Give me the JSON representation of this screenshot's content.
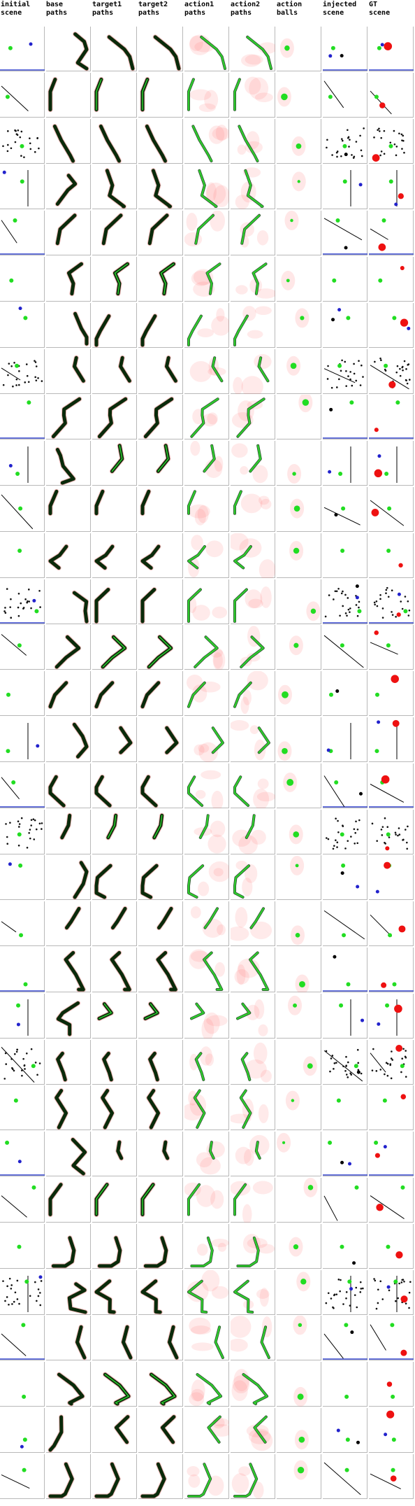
{
  "columns": [
    {
      "id": "initial_scene",
      "label": "initial\nscene"
    },
    {
      "id": "base_paths",
      "label": "base\npaths"
    },
    {
      "id": "target1_paths",
      "label": "target1\npaths"
    },
    {
      "id": "target2_paths",
      "label": "target2\npaths"
    },
    {
      "id": "action1_paths",
      "label": "action1\npaths"
    },
    {
      "id": "action2_paths",
      "label": "action2\npaths"
    },
    {
      "id": "action_balls",
      "label": "action\nballs"
    },
    {
      "id": "injected_scene",
      "label": "injected\nscene"
    },
    {
      "id": "gt_scene",
      "label": "GT\nscene"
    }
  ],
  "row_count": 32,
  "colors": {
    "background": "#ffffff",
    "grid_line": "#b8b8b8",
    "path_dark": "#0a2a0a",
    "path_green": "#2ecc2e",
    "heat_red": "#ff6060",
    "ball_green": "#22dd22",
    "ball_red": "#ee1111",
    "ball_blue": "#2222cc",
    "ball_black": "#000000",
    "wall_blue": "#3344cc"
  }
}
